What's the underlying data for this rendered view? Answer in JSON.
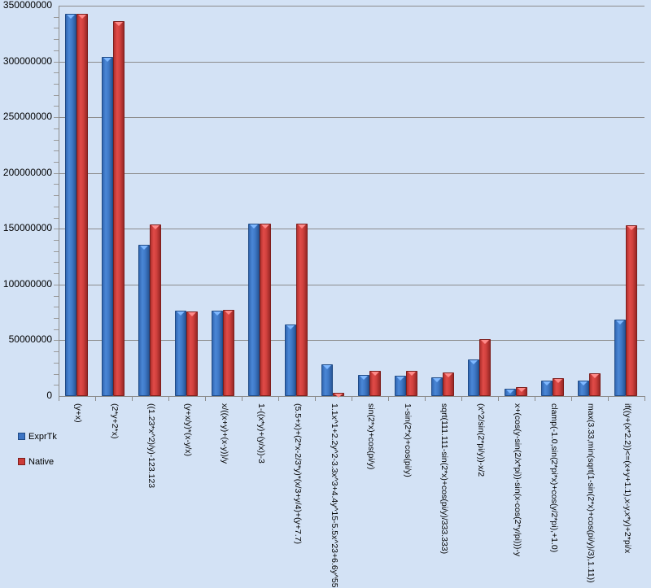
{
  "chart_data": {
    "type": "bar",
    "title": "",
    "xlabel": "",
    "ylabel": "",
    "ylim": [
      0,
      350000000
    ],
    "yticks": [
      0,
      50000000,
      100000000,
      150000000,
      200000000,
      250000000,
      300000000,
      350000000
    ],
    "ytick_labels": [
      "0",
      "50000000",
      "100000000",
      "150000000",
      "200000000",
      "250000000",
      "300000000",
      "350000000"
    ],
    "grid": true,
    "legend_position": "left",
    "categories": [
      "(y+x)",
      "(2*y+2*x)",
      "((1.23*x^2)/y)-123.123",
      "(y+x/y)*(x-y/x)",
      "x/((x+y)+(x-y))/y",
      "1-((x*y)+(y/x))-3",
      "(5.5+x)+(2*x-2/3*y)*(x/3+y/4)+(y+7.7)",
      "1.1x^1+2.2y^2-3.3x^3+4.4y^15-5.5x^23+6.6y^55",
      "sin(2*x)+cos(pi/y)",
      "1-sin(2*x)+cos(pi/y)",
      "sqrt(111.111-sin(2*x)+cos(pi/y)/333.333)",
      "(x^2/sin(2*pi/y))-x/2",
      "x+(cos(y-sin(2/x*pi))-sin(x-cos(2*y/pi)))-y",
      "clamp(-1.0,sin(2*pi*x)+cos(y/2*pi),+1.0)",
      "max(3.33,min(sqrt(1-sin(2*x)+cos(pi/y)/3),1.11))",
      "if((y+(x*2.2))<=(x+y+1.1),x-y,x*y)+2*pi/x"
    ],
    "series": [
      {
        "name": "ExprTk",
        "color": "#3c74c4",
        "values": [
          342700000,
          304000000,
          135600000,
          76600000,
          76600000,
          154600000,
          64200000,
          28400000,
          19000000,
          18200000,
          16800000,
          32800000,
          6600000,
          13900000,
          13900000,
          68500000
        ]
      },
      {
        "name": "Native",
        "color": "#cc3b38",
        "values": [
          342700000,
          336000000,
          153900000,
          75800000,
          77300000,
          154600000,
          154600000,
          2900000,
          22600000,
          22600000,
          21100000,
          51000000,
          8000000,
          16000000,
          20400000,
          153100000
        ]
      }
    ]
  },
  "legend": {
    "items": [
      {
        "label": "ExprTk",
        "color": "#3c74c4"
      },
      {
        "label": "Native",
        "color": "#cc3b38"
      }
    ]
  }
}
